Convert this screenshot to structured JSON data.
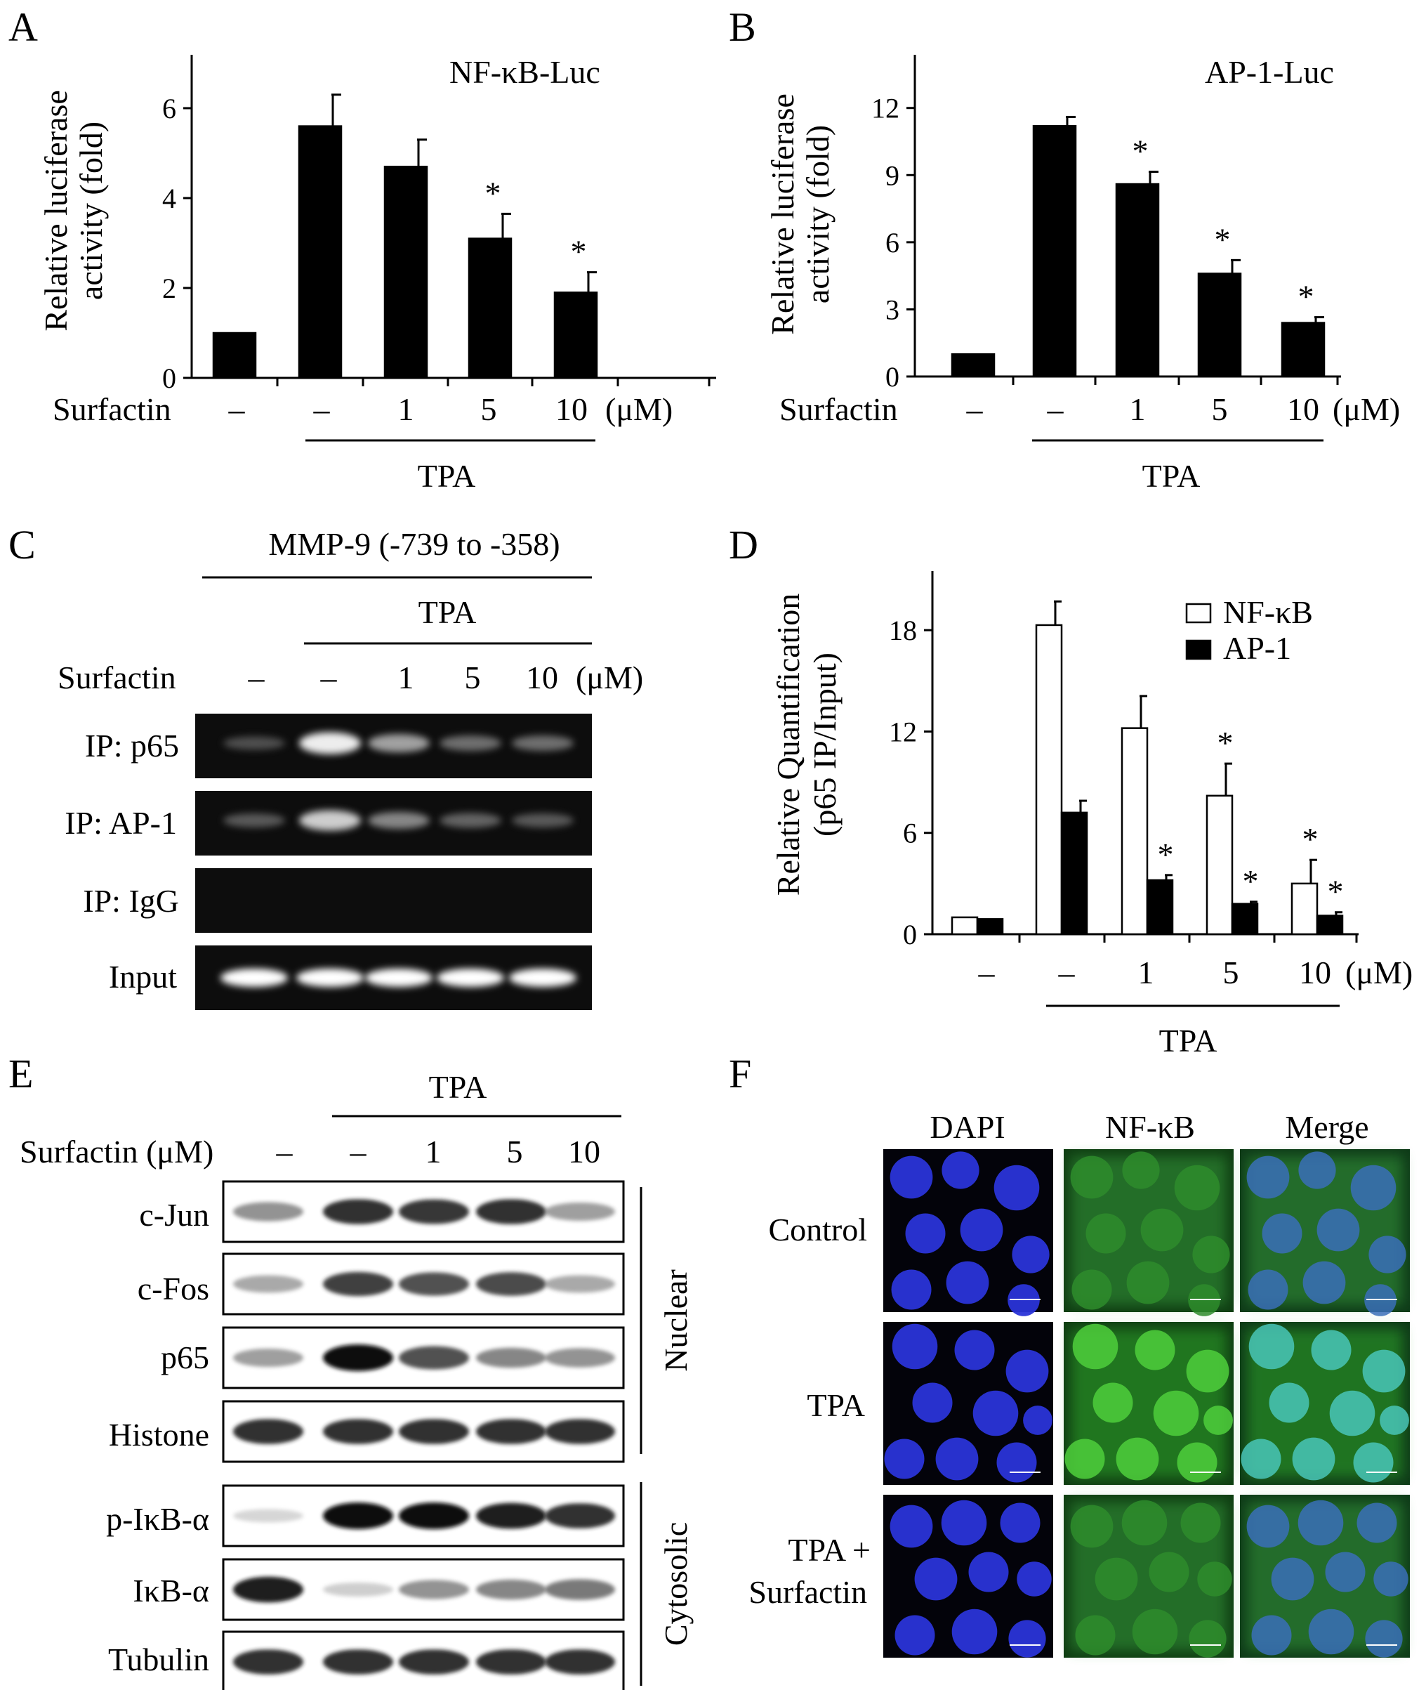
{
  "figure": {
    "panel_letters": [
      "A",
      "B",
      "C",
      "D",
      "E",
      "F"
    ],
    "surfactin_label": "Surfactin",
    "surfactin_label_um": "Surfactin (μM)",
    "treatment_label": "TPA",
    "unit_label": "(μM)",
    "dose_labels": [
      "–",
      "–",
      "1",
      "5",
      "10"
    ],
    "significance_marker": "*"
  },
  "chart_data": [
    {
      "panel": "A",
      "type": "bar",
      "title": "NF-κB-Luc",
      "ylabel": "Relative luciferase activity (fold)",
      "ylabel_lines": [
        "Relative luciferase",
        "activity (fold)"
      ],
      "ylim": [
        0,
        7
      ],
      "yticks": [
        0,
        2,
        4,
        6
      ],
      "categories": [
        "–",
        "–",
        "1",
        "5",
        "10"
      ],
      "values": [
        1.0,
        5.6,
        4.7,
        3.1,
        1.9
      ],
      "errors": [
        0.0,
        0.7,
        0.6,
        0.55,
        0.45
      ],
      "significant": [
        false,
        false,
        false,
        true,
        true
      ],
      "color": "#000000"
    },
    {
      "panel": "B",
      "type": "bar",
      "title": "AP-1-Luc",
      "ylabel": "Relative luciferase activity (fold)",
      "ylabel_lines": [
        "Relative luciferase",
        "activity (fold)"
      ],
      "ylim": [
        0,
        14
      ],
      "yticks": [
        0,
        3,
        6,
        9,
        12
      ],
      "categories": [
        "–",
        "–",
        "1",
        "5",
        "10"
      ],
      "values": [
        1.0,
        11.2,
        8.6,
        4.6,
        2.4
      ],
      "errors": [
        0.0,
        0.4,
        0.55,
        0.6,
        0.25
      ],
      "significant": [
        false,
        false,
        true,
        true,
        true
      ],
      "color": "#000000"
    },
    {
      "panel": "D",
      "type": "bar",
      "ylabel": "Relative Quantification (p65 IP/Input)",
      "ylabel_lines": [
        "Relative Quantification",
        "(p65  IP/Input)"
      ],
      "ylim": [
        0,
        21
      ],
      "yticks": [
        0,
        6,
        12,
        18
      ],
      "categories": [
        "–",
        "–",
        "1",
        "5",
        "10"
      ],
      "series": [
        {
          "name": "NF-κB",
          "values": [
            1.0,
            18.3,
            12.2,
            8.2,
            3.0
          ],
          "errors": [
            0.0,
            1.4,
            1.9,
            1.9,
            1.4
          ],
          "significant": [
            false,
            false,
            false,
            true,
            true
          ],
          "fill": "#ffffff"
        },
        {
          "name": "AP-1",
          "values": [
            0.9,
            7.2,
            3.2,
            1.8,
            1.1
          ],
          "errors": [
            0.0,
            0.7,
            0.3,
            0.12,
            0.2
          ],
          "significant": [
            false,
            false,
            true,
            true,
            true
          ],
          "fill": "#000000"
        }
      ],
      "legend": "top-right"
    }
  ],
  "panel_c": {
    "header": "MMP-9 (-739 to -358)",
    "rows": [
      "IP: p65",
      "IP: AP-1",
      "IP: IgG",
      "Input"
    ],
    "band_intensity": [
      [
        0.35,
        0.95,
        0.7,
        0.5,
        0.5
      ],
      [
        0.4,
        0.85,
        0.6,
        0.45,
        0.4
      ],
      [
        0,
        0,
        0,
        0,
        0
      ],
      [
        1,
        1,
        1,
        1,
        1
      ]
    ]
  },
  "panel_e": {
    "rows": [
      "c-Jun",
      "c-Fos",
      "p65",
      "Histone",
      "p-IκB-α",
      "IκB-α",
      "Tubulin"
    ],
    "groups": [
      "Nuclear",
      "Cytosolic"
    ],
    "band_intensity": [
      [
        0.55,
        0.9,
        0.88,
        0.9,
        0.5
      ],
      [
        0.45,
        0.85,
        0.8,
        0.82,
        0.45
      ],
      [
        0.5,
        1.0,
        0.8,
        0.6,
        0.55
      ],
      [
        0.9,
        0.9,
        0.9,
        0.9,
        0.9
      ],
      [
        0.2,
        1.0,
        1.0,
        0.95,
        0.9
      ],
      [
        0.95,
        0.25,
        0.55,
        0.6,
        0.65
      ],
      [
        0.9,
        0.9,
        0.9,
        0.9,
        0.9
      ]
    ]
  },
  "panel_f": {
    "columns": [
      "DAPI",
      "NF-κB",
      "Merge"
    ],
    "rows": [
      [
        "Control"
      ],
      [
        "TPA"
      ],
      [
        "TPA +",
        "Surfactin"
      ]
    ]
  }
}
